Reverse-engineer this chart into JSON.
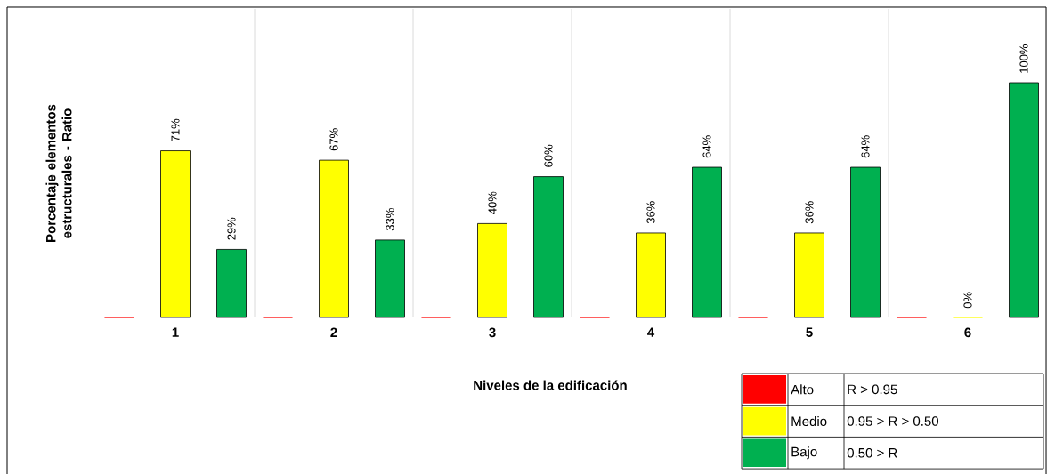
{
  "chart_data": {
    "type": "bar",
    "ylabel": "Porcentaje elementos estructurales - Ratio",
    "xlabel": "Niveles de la edificación",
    "categories": [
      "1",
      "2",
      "3",
      "4",
      "5",
      "6"
    ],
    "series": [
      {
        "name": "Alto",
        "color": "#ff0000",
        "values": [
          0,
          0,
          0,
          0,
          0,
          0
        ]
      },
      {
        "name": "Medio",
        "color": "#ffff00",
        "values": [
          71,
          67,
          40,
          36,
          36,
          0
        ],
        "value_labels": [
          "71%",
          "67%",
          "40%",
          "36%",
          "36%",
          "0%"
        ]
      },
      {
        "name": "Bajo",
        "color": "#00b050",
        "values": [
          29,
          33,
          60,
          64,
          64,
          100
        ],
        "value_labels": [
          "29%",
          "33%",
          "60%",
          "64%",
          "64%",
          "100%"
        ]
      }
    ],
    "annotations": [
      "R > 0.95",
      "0.95 > R > 0.50",
      "0.50 > R"
    ],
    "legend": "bottom right",
    "grid": "x"
  }
}
